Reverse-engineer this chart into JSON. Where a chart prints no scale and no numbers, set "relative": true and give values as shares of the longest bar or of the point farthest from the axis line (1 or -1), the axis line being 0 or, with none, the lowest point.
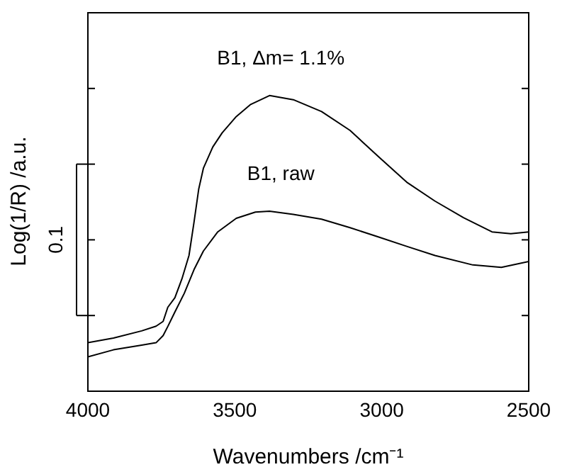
{
  "chart_data": {
    "type": "line",
    "relative": true,
    "xlabel": "Wavenumbers /cm⁻¹",
    "ylabel": "Log(1/R) /a.u.",
    "xlim": [
      4000,
      2500
    ],
    "xticks": [
      4000,
      3500,
      3000,
      2500
    ],
    "annotations": [
      "0.1"
    ],
    "marker": "none",
    "line_style": "solid",
    "series": [
      {
        "name": "B1, Δm= 1.1%",
        "color": "#000000",
        "x": [
          4000,
          3913,
          3817,
          3768,
          3744,
          3728,
          3704,
          3680,
          3656,
          3639,
          3623,
          3607,
          3575,
          3543,
          3495,
          3446,
          3382,
          3301,
          3205,
          3108,
          3012,
          2915,
          2819,
          2722,
          2625,
          2561,
          2500
        ],
        "values": [
          0.164,
          0.18,
          0.204,
          0.22,
          0.236,
          0.284,
          0.316,
          0.38,
          0.459,
          0.571,
          0.683,
          0.754,
          0.826,
          0.874,
          0.929,
          0.97,
          1.0,
          0.986,
          0.946,
          0.882,
          0.794,
          0.707,
          0.643,
          0.587,
          0.539,
          0.533,
          0.539
        ]
      },
      {
        "name": "B1, raw",
        "color": "#000000",
        "x": [
          4000,
          3913,
          3817,
          3768,
          3744,
          3728,
          3704,
          3672,
          3639,
          3607,
          3559,
          3495,
          3430,
          3382,
          3301,
          3205,
          3108,
          3012,
          2915,
          2819,
          2690,
          2593,
          2500
        ],
        "values": [
          0.116,
          0.14,
          0.156,
          0.164,
          0.188,
          0.219,
          0.268,
          0.331,
          0.411,
          0.474,
          0.538,
          0.585,
          0.606,
          0.609,
          0.598,
          0.582,
          0.553,
          0.522,
          0.49,
          0.459,
          0.427,
          0.419,
          0.439
        ]
      }
    ]
  }
}
